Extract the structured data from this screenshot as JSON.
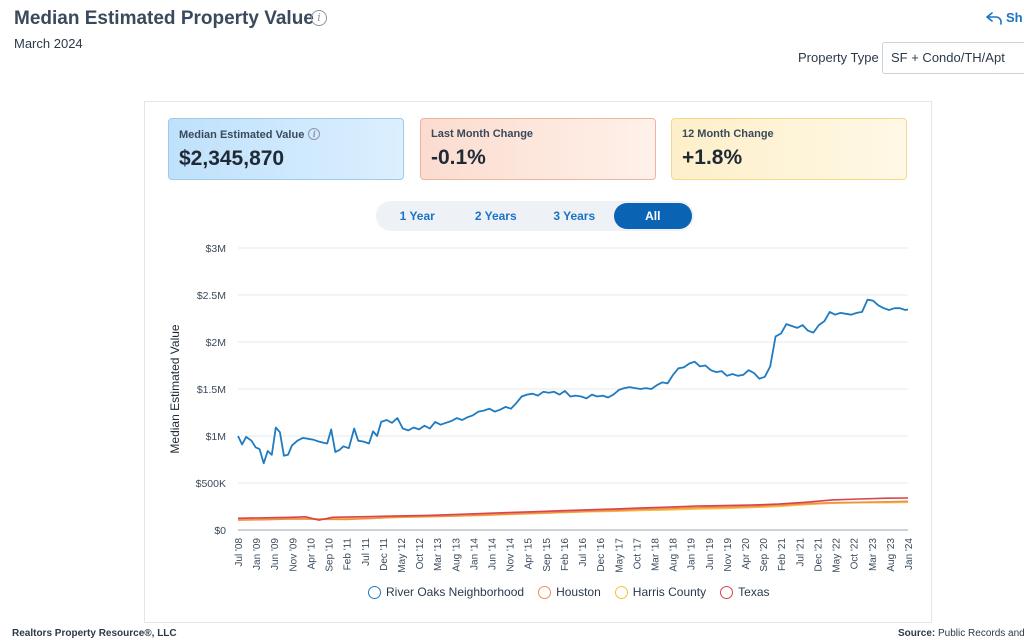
{
  "header": {
    "title": "Median Estimated Property Value",
    "subtitle": "March 2024",
    "share_label": "Sh",
    "property_type_label": "Property Type",
    "property_type_value": "SF + Condo/TH/Apt"
  },
  "cards": {
    "median_label": "Median Estimated Value",
    "median_value": "$2,345,870",
    "last_month_label": "Last Month Change",
    "last_month_value": "-0.1%",
    "twelve_month_label": "12 Month Change",
    "twelve_month_value": "+1.8%"
  },
  "range_tabs": [
    "1 Year",
    "2 Years",
    "3 Years",
    "All"
  ],
  "active_range": "All",
  "footer": {
    "left": "Realtors Property Resource®, LLC",
    "right_label": "Source:",
    "right_text": "Public Records and"
  },
  "colors": {
    "river_oaks": "#1f7bc1",
    "houston": "#ef8f4c",
    "harris": "#f6bf3c",
    "texas": "#d6454a",
    "accent": "#0b63b3"
  },
  "chart_data": {
    "type": "line",
    "ylabel": "Median Estimated Value",
    "xlabel": "",
    "yticks": [
      "$0",
      "$500K",
      "$1M",
      "$1.5M",
      "$2M",
      "$2.5M",
      "$3M"
    ],
    "ylim": [
      0,
      3000000
    ],
    "xticks": [
      "Jul '08",
      "Jan '09",
      "Jun '09",
      "Nov '09",
      "Apr '10",
      "Sep '10",
      "Feb '11",
      "Jul '11",
      "Dec '11",
      "May '12",
      "Oct '12",
      "Mar '13",
      "Aug '13",
      "Jan '14",
      "Jun '14",
      "Nov '14",
      "Apr '15",
      "Sep '15",
      "Feb '16",
      "Jul '16",
      "Dec '16",
      "May '17",
      "Oct '17",
      "Mar '18",
      "Aug '18",
      "Jan '19",
      "Jun '19",
      "Nov '19",
      "Apr '20",
      "Sep '20",
      "Feb '21",
      "Jul '21",
      "Dec '21",
      "May '22",
      "Oct '22",
      "Mar '23",
      "Aug '23",
      "Jan '24"
    ],
    "grid": true,
    "legend_position": "bottom",
    "series": [
      {
        "name": "River Oaks Neighborhood",
        "points": [
          [
            0,
            1000000
          ],
          [
            0.3,
            910000
          ],
          [
            0.6,
            990000
          ],
          [
            1,
            950000
          ],
          [
            1.3,
            880000
          ],
          [
            1.6,
            860000
          ],
          [
            1.9,
            710000
          ],
          [
            2.2,
            840000
          ],
          [
            2.5,
            800000
          ],
          [
            2.8,
            1090000
          ],
          [
            3.1,
            1040000
          ],
          [
            3.4,
            790000
          ],
          [
            3.7,
            800000
          ],
          [
            4,
            900000
          ],
          [
            4.4,
            950000
          ],
          [
            4.8,
            980000
          ],
          [
            5.2,
            970000
          ],
          [
            5.6,
            960000
          ],
          [
            6,
            940000
          ],
          [
            6.3,
            930000
          ],
          [
            6.6,
            920000
          ],
          [
            6.9,
            1070000
          ],
          [
            7.2,
            830000
          ],
          [
            7.5,
            850000
          ],
          [
            7.8,
            890000
          ],
          [
            8.2,
            870000
          ],
          [
            8.6,
            1080000
          ],
          [
            8.9,
            950000
          ],
          [
            9.3,
            940000
          ],
          [
            9.7,
            920000
          ],
          [
            10,
            1050000
          ],
          [
            10.3,
            1000000
          ],
          [
            10.6,
            1150000
          ],
          [
            11,
            1170000
          ],
          [
            11.4,
            1140000
          ],
          [
            11.8,
            1190000
          ],
          [
            12.2,
            1080000
          ],
          [
            12.6,
            1060000
          ],
          [
            13,
            1090000
          ],
          [
            13.4,
            1070000
          ],
          [
            13.8,
            1110000
          ],
          [
            14.2,
            1080000
          ],
          [
            14.6,
            1150000
          ],
          [
            15,
            1120000
          ],
          [
            15.4,
            1140000
          ],
          [
            15.8,
            1160000
          ],
          [
            16.2,
            1190000
          ],
          [
            16.6,
            1170000
          ],
          [
            17,
            1200000
          ],
          [
            17.4,
            1220000
          ],
          [
            17.8,
            1260000
          ],
          [
            18.2,
            1270000
          ],
          [
            18.6,
            1290000
          ],
          [
            19,
            1260000
          ],
          [
            19.4,
            1280000
          ],
          [
            19.8,
            1310000
          ],
          [
            20.2,
            1290000
          ],
          [
            20.6,
            1350000
          ],
          [
            21,
            1420000
          ],
          [
            21.4,
            1440000
          ],
          [
            21.8,
            1450000
          ],
          [
            22.2,
            1430000
          ],
          [
            22.6,
            1470000
          ],
          [
            23,
            1460000
          ],
          [
            23.4,
            1470000
          ],
          [
            23.8,
            1440000
          ],
          [
            24.2,
            1480000
          ],
          [
            24.6,
            1420000
          ],
          [
            25,
            1430000
          ],
          [
            25.4,
            1420000
          ],
          [
            25.8,
            1400000
          ],
          [
            26.2,
            1440000
          ],
          [
            26.6,
            1420000
          ],
          [
            27,
            1430000
          ],
          [
            27.4,
            1410000
          ],
          [
            27.8,
            1440000
          ],
          [
            28.2,
            1490000
          ],
          [
            28.6,
            1510000
          ],
          [
            29,
            1520000
          ],
          [
            29.4,
            1510000
          ],
          [
            29.8,
            1500000
          ],
          [
            30.2,
            1510000
          ],
          [
            30.6,
            1500000
          ],
          [
            31,
            1540000
          ],
          [
            31.4,
            1570000
          ],
          [
            31.8,
            1560000
          ],
          [
            32.2,
            1650000
          ],
          [
            32.6,
            1720000
          ],
          [
            33,
            1730000
          ],
          [
            33.4,
            1770000
          ],
          [
            33.8,
            1790000
          ],
          [
            34.2,
            1740000
          ],
          [
            34.6,
            1750000
          ],
          [
            35,
            1700000
          ],
          [
            35.4,
            1680000
          ],
          [
            35.8,
            1690000
          ],
          [
            36.2,
            1640000
          ],
          [
            36.6,
            1660000
          ],
          [
            37,
            1640000
          ],
          [
            37.4,
            1650000
          ],
          [
            37.8,
            1700000
          ],
          [
            38.2,
            1670000
          ],
          [
            38.6,
            1610000
          ],
          [
            39,
            1630000
          ],
          [
            39.4,
            1740000
          ],
          [
            39.8,
            2060000
          ],
          [
            40.2,
            2090000
          ],
          [
            40.6,
            2190000
          ],
          [
            41,
            2170000
          ],
          [
            41.4,
            2150000
          ],
          [
            41.8,
            2180000
          ],
          [
            42.2,
            2120000
          ],
          [
            42.6,
            2100000
          ],
          [
            43,
            2180000
          ],
          [
            43.4,
            2220000
          ],
          [
            43.8,
            2320000
          ],
          [
            44.2,
            2290000
          ],
          [
            44.6,
            2310000
          ],
          [
            45,
            2300000
          ],
          [
            45.4,
            2290000
          ],
          [
            45.8,
            2310000
          ],
          [
            46.2,
            2320000
          ],
          [
            46.6,
            2450000
          ],
          [
            47,
            2440000
          ],
          [
            47.4,
            2390000
          ],
          [
            47.8,
            2360000
          ],
          [
            48.2,
            2340000
          ],
          [
            48.6,
            2360000
          ],
          [
            49,
            2360000
          ],
          [
            49.4,
            2340000
          ],
          [
            49.6,
            2346000
          ]
        ]
      },
      {
        "name": "Houston",
        "points": [
          [
            0,
            105000
          ],
          [
            2,
            110000
          ],
          [
            4,
            118000
          ],
          [
            6,
            115000
          ],
          [
            8,
            112000
          ],
          [
            10,
            125000
          ],
          [
            12,
            140000
          ],
          [
            14,
            145000
          ],
          [
            16,
            150000
          ],
          [
            18,
            160000
          ],
          [
            20,
            170000
          ],
          [
            22,
            180000
          ],
          [
            24,
            190000
          ],
          [
            26,
            200000
          ],
          [
            28,
            210000
          ],
          [
            30,
            220000
          ],
          [
            32,
            230000
          ],
          [
            34,
            240000
          ],
          [
            36,
            245000
          ],
          [
            38,
            250000
          ],
          [
            40,
            265000
          ],
          [
            42,
            280000
          ],
          [
            44,
            290000
          ],
          [
            46,
            295000
          ],
          [
            48,
            300000
          ],
          [
            49.6,
            305000
          ]
        ]
      },
      {
        "name": "Harris County",
        "points": [
          [
            0,
            120000
          ],
          [
            2,
            122000
          ],
          [
            4,
            125000
          ],
          [
            5,
            120000
          ],
          [
            6,
            118000
          ],
          [
            8,
            120000
          ],
          [
            10,
            125000
          ],
          [
            12,
            135000
          ],
          [
            14,
            140000
          ],
          [
            16,
            148000
          ],
          [
            18,
            155000
          ],
          [
            20,
            165000
          ],
          [
            22,
            175000
          ],
          [
            24,
            185000
          ],
          [
            26,
            195000
          ],
          [
            28,
            200000
          ],
          [
            30,
            210000
          ],
          [
            32,
            215000
          ],
          [
            34,
            225000
          ],
          [
            36,
            230000
          ],
          [
            38,
            240000
          ],
          [
            40,
            250000
          ],
          [
            42,
            270000
          ],
          [
            44,
            285000
          ],
          [
            46,
            290000
          ],
          [
            48,
            292000
          ],
          [
            49.6,
            295000
          ]
        ]
      },
      {
        "name": "Texas",
        "points": [
          [
            0,
            125000
          ],
          [
            2,
            130000
          ],
          [
            4,
            135000
          ],
          [
            5,
            140000
          ],
          [
            6,
            105000
          ],
          [
            7,
            135000
          ],
          [
            9,
            140000
          ],
          [
            12,
            150000
          ],
          [
            14,
            155000
          ],
          [
            16,
            165000
          ],
          [
            18,
            175000
          ],
          [
            20,
            185000
          ],
          [
            22,
            195000
          ],
          [
            24,
            205000
          ],
          [
            26,
            215000
          ],
          [
            28,
            225000
          ],
          [
            30,
            235000
          ],
          [
            32,
            245000
          ],
          [
            34,
            255000
          ],
          [
            36,
            260000
          ],
          [
            38,
            265000
          ],
          [
            40,
            275000
          ],
          [
            42,
            295000
          ],
          [
            44,
            320000
          ],
          [
            46,
            330000
          ],
          [
            48,
            338000
          ],
          [
            49.6,
            340000
          ]
        ]
      }
    ]
  }
}
